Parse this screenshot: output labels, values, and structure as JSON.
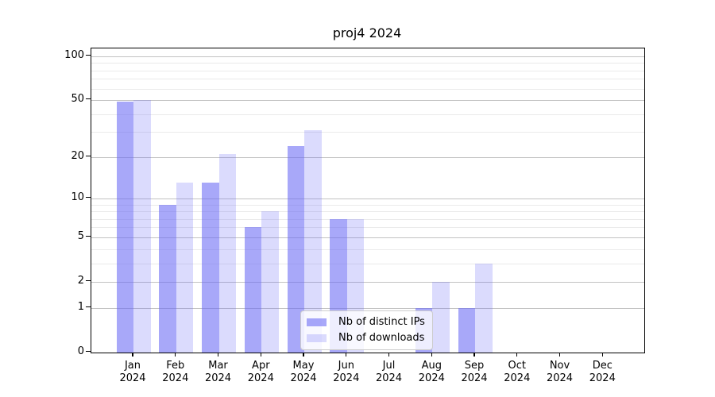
{
  "title": "proj4 2024",
  "chart_data": {
    "type": "bar",
    "title": "proj4 2024",
    "categories": [
      "Jan 2024",
      "Feb 2024",
      "Mar 2024",
      "Apr 2024",
      "May 2024",
      "Jun 2024",
      "Jul 2024",
      "Aug 2024",
      "Sep 2024",
      "Oct 2024",
      "Nov 2024",
      "Dec 2024"
    ],
    "x_tick_labels": [
      {
        "month": "Jan",
        "year": "2024"
      },
      {
        "month": "Feb",
        "year": "2024"
      },
      {
        "month": "Mar",
        "year": "2024"
      },
      {
        "month": "Apr",
        "year": "2024"
      },
      {
        "month": "May",
        "year": "2024"
      },
      {
        "month": "Jun",
        "year": "2024"
      },
      {
        "month": "Jul",
        "year": "2024"
      },
      {
        "month": "Aug",
        "year": "2024"
      },
      {
        "month": "Sep",
        "year": "2024"
      },
      {
        "month": "Oct",
        "year": "2024"
      },
      {
        "month": "Nov",
        "year": "2024"
      },
      {
        "month": "Dec",
        "year": "2024"
      }
    ],
    "series": [
      {
        "name": "Nb of distinct IPs",
        "key": "distinct-ips",
        "color": "rgba(105,105,245,0.58)",
        "values": [
          49,
          9,
          13,
          6,
          24,
          7,
          0,
          1,
          1,
          0,
          0,
          0
        ]
      },
      {
        "name": "Nb of downloads",
        "key": "downloads",
        "color": "rgba(105,105,245,0.24)",
        "values": [
          50,
          13,
          21,
          8,
          31,
          7,
          0,
          2,
          3,
          0,
          0,
          0
        ]
      }
    ],
    "y_axis": {
      "scale": "log1p",
      "major_ticks": [
        {
          "label": "100",
          "value": 100
        },
        {
          "label": "50",
          "value": 50
        },
        {
          "label": "20",
          "value": 20
        },
        {
          "label": "10",
          "value": 10
        },
        {
          "label": "5",
          "value": 5
        },
        {
          "label": "2",
          "value": 2
        },
        {
          "label": "1",
          "value": 1
        },
        {
          "label": "0",
          "value": 0
        }
      ],
      "minor_tick_values": [
        3,
        4,
        6,
        7,
        8,
        9,
        30,
        40,
        60,
        70,
        80,
        90
      ],
      "ylim": [
        0,
        116
      ]
    },
    "legend": {
      "location": "lower center",
      "entries": [
        "Nb of distinct IPs",
        "Nb of downloads"
      ]
    },
    "grid": true,
    "colors": {
      "bar_base": "#6969f5",
      "major_grid": "#c2c2c2",
      "minor_grid": "#eaeaea",
      "spine": "#000000",
      "text": "#000000"
    }
  }
}
